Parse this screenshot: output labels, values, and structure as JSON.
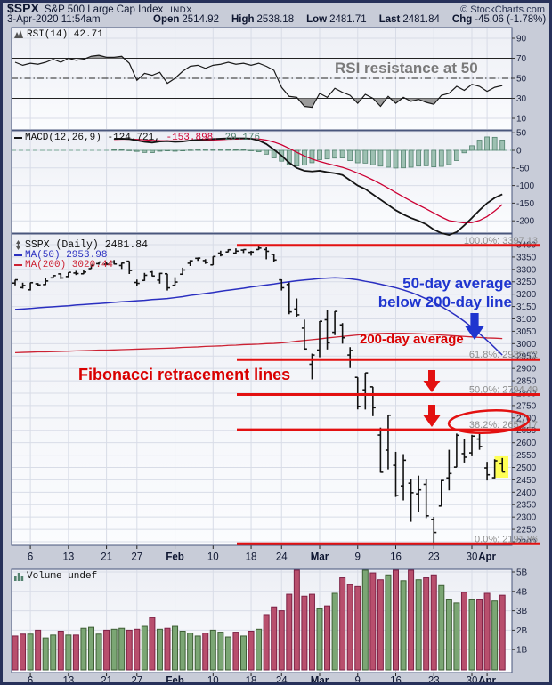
{
  "header": {
    "symbol": "$SPX",
    "name": "S&P 500 Large Cap Index",
    "exchange": "INDX",
    "copyright": "© StockCharts.com",
    "datetime": "3-Apr-2020 11:54am",
    "quote": {
      "open_label": "Open",
      "open": "2514.92",
      "high_label": "High",
      "high": "2538.18",
      "low_label": "Low",
      "low": "2481.71",
      "last_label": "Last",
      "last": "2481.84",
      "chg_label": "Chg",
      "chg": "-45.06 (-1.78%)",
      "direction": "▼"
    }
  },
  "legends": {
    "rsi": "RSI(14) 42.71",
    "macd": {
      "name": "MACD(12,26,9)",
      "v1": "-124.721,",
      "v2": "-153.898,",
      "v3": "29.176"
    },
    "spx": "$SPX (Daily) 2481.84",
    "ma50": "MA(50) 2953.98",
    "ma200": "MA(200) 3020.44",
    "volume": "Volume undef"
  },
  "annotations": {
    "rsi_note": "RSI resistance at 50",
    "ma_note_line1": "50-day average",
    "ma_note_line2": "below 200-day line",
    "ma200_note": "200-day average",
    "fib_note": "Fibonacci retracement lines"
  },
  "colors": {
    "fib_line": "#e31111",
    "ma50": "#2a2fc0",
    "ma200": "#cc2233",
    "macd_line": "#141414",
    "macd_signal": "#cc0033",
    "hist_fill": "#9dc0b2",
    "hist_stroke": "#53826f",
    "vol_up_fill": "#7ba674",
    "vol_up_stroke": "#3f5f36",
    "vol_down_fill": "#b84f6d",
    "vol_down_stroke": "#7d2145",
    "annotation_blue": "#1f35cf",
    "annotation_red": "#d90000",
    "annotation_gray": "#7a7a7a",
    "highlight": "#ffff55",
    "fib_label": "#8c8c8c",
    "grid": "#d8dce7",
    "panel_border": "#49567c",
    "axis_text": "#1c2440",
    "rsi_shade": "#9b9b9b"
  },
  "fib": [
    {
      "label": "100.0%: 3397.13",
      "value": 3397.13
    },
    {
      "label": "61.8%: 2935.72",
      "value": 2935.72
    },
    {
      "label": "50.0%: 2794.49",
      "value": 2794.49
    },
    {
      "label": "38.2%: 2652.17",
      "value": 2652.17,
      "circled": true
    },
    {
      "label": "0.0%: 2191.86",
      "value": 2191.86
    }
  ],
  "axes": {
    "rsi_ticks": [
      90,
      70,
      50,
      30,
      10
    ],
    "macd_ticks": [
      50,
      0,
      -50,
      -100,
      -150,
      -200
    ],
    "price_max": 3400,
    "price_min": 2200,
    "price_step": 50,
    "volume_ticks": [
      "5B",
      "4B",
      "3B",
      "2B",
      "1B"
    ],
    "x_ticks": [
      {
        "i": 2,
        "t": "6"
      },
      {
        "i": 7,
        "t": "13"
      },
      {
        "i": 12,
        "t": "21"
      },
      {
        "i": 16,
        "t": "27"
      },
      {
        "i": 21,
        "t": "Feb",
        "b": 1
      },
      {
        "i": 26,
        "t": "10"
      },
      {
        "i": 31,
        "t": "18"
      },
      {
        "i": 35,
        "t": "24"
      },
      {
        "i": 40,
        "t": "Mar",
        "b": 1
      },
      {
        "i": 45,
        "t": "9"
      },
      {
        "i": 50,
        "t": "16"
      },
      {
        "i": 55,
        "t": "23"
      },
      {
        "i": 60,
        "t": "30"
      },
      {
        "i": 62,
        "t": "Apr",
        "b": 1
      }
    ]
  },
  "chart_data": {
    "type": "ohlc",
    "title": "$SPX (Daily)",
    "dates": [
      "Jan 2",
      "Jan 3",
      "Jan 6",
      "Jan 7",
      "Jan 8",
      "Jan 9",
      "Jan 10",
      "Jan 13",
      "Jan 14",
      "Jan 15",
      "Jan 16",
      "Jan 17",
      "Jan 21",
      "Jan 22",
      "Jan 23",
      "Jan 24",
      "Jan 27",
      "Jan 28",
      "Jan 29",
      "Jan 30",
      "Jan 31",
      "Feb 3",
      "Feb 4",
      "Feb 5",
      "Feb 6",
      "Feb 7",
      "Feb 10",
      "Feb 11",
      "Feb 12",
      "Feb 13",
      "Feb 14",
      "Feb 18",
      "Feb 19",
      "Feb 20",
      "Feb 21",
      "Feb 24",
      "Feb 25",
      "Feb 26",
      "Feb 27",
      "Feb 28",
      "Mar 2",
      "Mar 3",
      "Mar 4",
      "Mar 5",
      "Mar 6",
      "Mar 9",
      "Mar 10",
      "Mar 11",
      "Mar 12",
      "Mar 13",
      "Mar 16",
      "Mar 17",
      "Mar 18",
      "Mar 19",
      "Mar 20",
      "Mar 23",
      "Mar 24",
      "Mar 25",
      "Mar 26",
      "Mar 27",
      "Mar 30",
      "Mar 31",
      "Apr 1",
      "Apr 2",
      "Apr 3"
    ],
    "ohlc": [
      [
        3244.7,
        3258.1,
        3235.5,
        3257.9
      ],
      [
        3226.4,
        3246.2,
        3222.3,
        3234.9
      ],
      [
        3217.6,
        3246.8,
        3214.6,
        3246.3
      ],
      [
        3241.9,
        3244.9,
        3232.4,
        3237.2
      ],
      [
        3238.6,
        3267.1,
        3236.7,
        3253.1
      ],
      [
        3266.0,
        3275.6,
        3263.7,
        3274.7
      ],
      [
        3281.8,
        3283.0,
        3260.9,
        3265.4
      ],
      [
        3271.1,
        3288.1,
        3268.4,
        3288.1
      ],
      [
        3285.4,
        3294.3,
        3277.2,
        3283.2
      ],
      [
        3282.3,
        3298.7,
        3280.7,
        3289.3
      ],
      [
        3303.0,
        3317.1,
        3302.8,
        3316.8
      ],
      [
        3323.1,
        3329.9,
        3318.9,
        3329.6
      ],
      [
        3321.1,
        3329.8,
        3316.6,
        3320.8
      ],
      [
        3330.0,
        3337.8,
        3320.0,
        3321.8
      ],
      [
        3315.8,
        3326.9,
        3301.9,
        3325.5
      ],
      [
        3333.1,
        3333.2,
        3281.5,
        3295.5
      ],
      [
        3247.2,
        3258.9,
        3234.5,
        3243.6
      ],
      [
        3255.4,
        3285.8,
        3253.2,
        3276.2
      ],
      [
        3289.5,
        3293.5,
        3271.9,
        3273.4
      ],
      [
        3256.5,
        3285.9,
        3242.8,
        3283.7
      ],
      [
        3282.3,
        3282.3,
        3214.7,
        3225.5
      ],
      [
        3235.7,
        3268.4,
        3235.7,
        3248.9
      ],
      [
        3280.6,
        3306.9,
        3280.6,
        3297.6
      ],
      [
        3324.9,
        3337.6,
        3313.8,
        3334.7
      ],
      [
        3344.9,
        3348.0,
        3334.4,
        3345.8
      ],
      [
        3335.5,
        3341.4,
        3322.1,
        3327.7
      ],
      [
        3318.3,
        3352.3,
        3317.8,
        3352.1
      ],
      [
        3365.9,
        3375.6,
        3352.7,
        3357.8
      ],
      [
        3370.5,
        3381.5,
        3369.7,
        3379.5
      ],
      [
        3365.9,
        3385.1,
        3360.5,
        3373.9
      ],
      [
        3378.1,
        3380.7,
        3366.2,
        3380.2
      ],
      [
        3369.0,
        3375.0,
        3355.6,
        3370.3
      ],
      [
        3380.4,
        3393.5,
        3378.8,
        3386.2
      ],
      [
        3380.5,
        3389.2,
        3341.0,
        3373.2
      ],
      [
        3360.5,
        3360.8,
        3328.5,
        3337.8
      ],
      [
        3257.6,
        3259.8,
        3214.7,
        3225.9
      ],
      [
        3238.9,
        3247.0,
        3118.8,
        3128.2
      ],
      [
        3139.9,
        3182.5,
        3109.0,
        3116.4
      ],
      [
        3062.5,
        3097.1,
        2977.4,
        2978.8
      ],
      [
        2916.9,
        2959.7,
        2855.8,
        2954.2
      ],
      [
        2974.3,
        3091.0,
        2945.2,
        3090.2
      ],
      [
        3096.5,
        3136.7,
        2976.6,
        3003.4
      ],
      [
        3045.8,
        3131.0,
        3034.4,
        3130.1
      ],
      [
        3075.7,
        3083.0,
        2999.8,
        3023.9
      ],
      [
        2954.2,
        2985.9,
        2901.5,
        2972.4
      ],
      [
        2863.9,
        2863.9,
        2734.4,
        2746.6
      ],
      [
        2813.5,
        2882.6,
        2734.0,
        2882.2
      ],
      [
        2825.6,
        2825.6,
        2707.2,
        2741.4
      ],
      [
        2630.9,
        2661.0,
        2478.9,
        2480.6
      ],
      [
        2570.0,
        2711.3,
        2492.4,
        2711.0
      ],
      [
        2508.6,
        2563.0,
        2380.9,
        2386.1
      ],
      [
        2425.7,
        2553.9,
        2367.0,
        2529.2
      ],
      [
        2436.5,
        2453.6,
        2280.5,
        2398.1
      ],
      [
        2393.5,
        2467.0,
        2319.8,
        2409.4
      ],
      [
        2431.9,
        2453.0,
        2295.6,
        2304.9
      ],
      [
        2290.7,
        2300.7,
        2191.9,
        2237.4
      ],
      [
        2344.4,
        2449.7,
        2344.4,
        2447.3
      ],
      [
        2457.8,
        2571.4,
        2407.5,
        2475.6
      ],
      [
        2501.3,
        2637.0,
        2500.7,
        2630.1
      ],
      [
        2555.9,
        2615.9,
        2520.0,
        2541.5
      ],
      [
        2559.0,
        2631.8,
        2545.3,
        2626.7
      ],
      [
        2614.7,
        2641.4,
        2571.2,
        2584.6
      ],
      [
        2498.1,
        2522.8,
        2447.5,
        2470.5
      ],
      [
        2458.5,
        2533.2,
        2455.8,
        2526.9
      ],
      [
        2514.9,
        2538.2,
        2481.7,
        2481.8
      ]
    ],
    "volume_billions": [
      1.7,
      1.8,
      1.8,
      2.0,
      1.6,
      1.75,
      1.95,
      1.75,
      1.75,
      2.1,
      2.15,
      1.8,
      2.0,
      2.05,
      2.1,
      2.0,
      2.05,
      2.2,
      2.65,
      2.05,
      2.1,
      2.2,
      1.95,
      1.85,
      1.7,
      1.85,
      2.0,
      1.9,
      1.65,
      1.9,
      1.7,
      1.95,
      2.05,
      2.8,
      3.2,
      3.0,
      3.85,
      5.2,
      3.75,
      3.85,
      3.1,
      3.25,
      3.9,
      4.7,
      4.35,
      4.25,
      5.3,
      4.95,
      4.6,
      4.85,
      5.2,
      4.55,
      5.4,
      4.6,
      4.7,
      4.85,
      4.3,
      3.6,
      3.4,
      3.95,
      3.6,
      3.6,
      3.9,
      3.5,
      3.8
    ],
    "rsi": [
      66,
      63,
      65,
      64,
      66,
      69,
      66,
      70,
      68,
      69,
      72,
      73,
      71,
      71,
      72,
      65,
      48,
      55,
      53,
      56,
      45,
      50,
      57,
      62,
      63,
      60,
      63,
      64,
      66,
      64,
      65,
      63,
      65,
      62,
      58,
      41,
      32,
      31,
      22,
      21,
      35,
      31,
      40,
      36,
      33,
      25,
      34,
      30,
      22,
      32,
      25,
      31,
      27,
      29,
      26,
      24,
      33,
      35,
      42,
      38,
      44,
      42,
      37,
      41,
      42.71
    ],
    "macd": [
      null,
      null,
      null,
      null,
      null,
      null,
      null,
      null,
      null,
      null,
      null,
      null,
      null,
      33,
      33,
      32,
      28,
      24,
      22,
      25,
      26,
      24,
      25,
      28,
      30,
      31,
      32,
      33,
      34,
      34,
      34,
      33,
      28,
      18,
      2,
      -15,
      -35,
      -50,
      -58,
      -60,
      -58,
      -62,
      -65,
      -70,
      -85,
      -100,
      -110,
      -125,
      -140,
      -155,
      -170,
      -182,
      -192,
      -200,
      -210,
      -225,
      -235,
      -240,
      -232,
      -213,
      -192,
      -170,
      -150,
      -135,
      -124.72
    ],
    "macd_signal": [
      null,
      null,
      null,
      null,
      null,
      null,
      null,
      null,
      null,
      null,
      null,
      null,
      null,
      31,
      31.5,
      31.5,
      31,
      30,
      28.5,
      27.5,
      27,
      26.5,
      26.5,
      27,
      27.5,
      28.5,
      29.5,
      30.5,
      31.5,
      32,
      32.5,
      32.8,
      32,
      29,
      23.5,
      15.8,
      5.6,
      -5.5,
      -16,
      -24.8,
      -31.5,
      -37.6,
      -43,
      -48.4,
      -55.7,
      -64.6,
      -73.7,
      -84,
      -95.2,
      -107.1,
      -119.7,
      -132.2,
      -144.1,
      -155.3,
      -166.2,
      -178,
      -189.4,
      -199.5,
      -203,
      -206,
      -205,
      -199,
      -188,
      -172,
      -153.9
    ],
    "ma50": [
      3138,
      3140,
      3142,
      3145,
      3147,
      3149,
      3151,
      3153,
      3156,
      3158,
      3160,
      3162,
      3164,
      3167,
      3169,
      3171,
      3173,
      3175,
      3178,
      3180,
      3182,
      3186,
      3190,
      3195,
      3199,
      3203,
      3207,
      3212,
      3216,
      3220,
      3224,
      3229,
      3233,
      3237,
      3241,
      3246,
      3250,
      3254,
      3257,
      3260,
      3263,
      3265,
      3266,
      3265,
      3262,
      3258,
      3252,
      3247,
      3240,
      3233,
      3226,
      3217,
      3207,
      3195,
      3181,
      3166,
      3150,
      3132,
      3112,
      3090,
      3066,
      3040,
      3013,
      2984,
      2954
    ],
    "ma200": [
      2964,
      2965,
      2966,
      2967,
      2967,
      2968,
      2969,
      2970,
      2971,
      2972,
      2973,
      2974,
      2974,
      2975,
      2976,
      2977,
      2978,
      2979,
      2980,
      2981,
      2982,
      2983,
      2985,
      2986,
      2987,
      2989,
      2990,
      2991,
      2993,
      2994,
      2996,
      2997,
      2998,
      3000,
      3001,
      3003,
      3006,
      3010,
      3013,
      3016,
      3019,
      3023,
      3026,
      3029,
      3032,
      3035,
      3038,
      3040,
      3041,
      3042,
      3042,
      3042,
      3041,
      3040,
      3039,
      3037,
      3035,
      3033,
      3031,
      3029,
      3027,
      3025,
      3023,
      3022,
      3020.4
    ]
  }
}
